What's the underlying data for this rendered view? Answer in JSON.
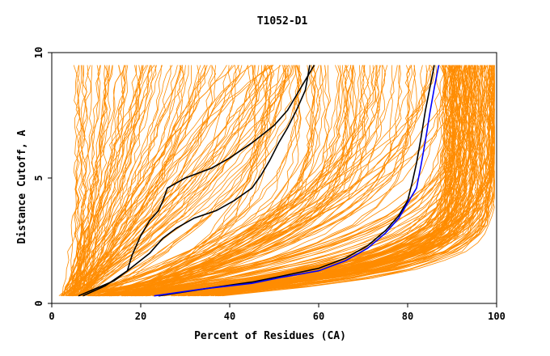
{
  "chart_data": {
    "type": "line",
    "title": "T1052-D1",
    "xlabel": "Percent of Residues (CA)",
    "ylabel": "Distance Cutoff, A",
    "xlim": [
      0,
      100
    ],
    "ylim": [
      0,
      10
    ],
    "xticks": [
      "0",
      "20",
      "40",
      "60",
      "80",
      "100"
    ],
    "yticks": [
      "0",
      "5",
      "10"
    ],
    "grid": false,
    "legend": "none",
    "colors": {
      "background_models": "#ff8c00",
      "highlight_black": "#000000",
      "highlight_blue": "#0000ff",
      "frame": "#000000"
    },
    "background_model_count": 300,
    "series": [
      {
        "color": "#000000",
        "x": [
          6,
          10,
          14,
          17,
          18,
          20,
          22,
          24,
          25,
          26,
          30,
          36,
          40,
          45,
          50,
          53,
          56,
          59
        ],
        "y": [
          0.3,
          0.6,
          0.9,
          1.3,
          1.9,
          2.7,
          3.3,
          3.7,
          4.1,
          4.6,
          5.0,
          5.4,
          5.8,
          6.4,
          7.1,
          7.7,
          8.6,
          9.5
        ]
      },
      {
        "color": "#000000",
        "x": [
          7,
          12,
          17,
          22,
          25,
          28,
          32,
          37,
          41,
          45,
          47,
          49,
          51,
          53,
          55,
          57,
          58
        ],
        "y": [
          0.3,
          0.7,
          1.3,
          2.0,
          2.6,
          3.0,
          3.4,
          3.7,
          4.1,
          4.6,
          5.1,
          5.7,
          6.4,
          7.0,
          7.7,
          8.5,
          9.5
        ]
      },
      {
        "color": "#000000",
        "x": [
          24,
          35,
          45,
          52,
          60,
          66,
          71,
          75,
          78,
          80,
          81,
          82,
          83,
          84,
          85,
          86
        ],
        "y": [
          0.3,
          0.6,
          0.85,
          1.1,
          1.4,
          1.8,
          2.3,
          2.9,
          3.5,
          4.1,
          4.8,
          5.6,
          6.6,
          7.7,
          8.6,
          9.5
        ]
      },
      {
        "color": "#0000ff",
        "x": [
          23,
          35,
          45,
          52,
          60,
          66,
          71,
          75,
          78,
          80,
          82,
          83,
          84,
          85,
          86,
          87
        ],
        "y": [
          0.3,
          0.6,
          0.8,
          1.05,
          1.3,
          1.7,
          2.2,
          2.8,
          3.4,
          4.0,
          4.6,
          5.5,
          6.5,
          7.6,
          8.6,
          9.5
        ]
      }
    ]
  }
}
